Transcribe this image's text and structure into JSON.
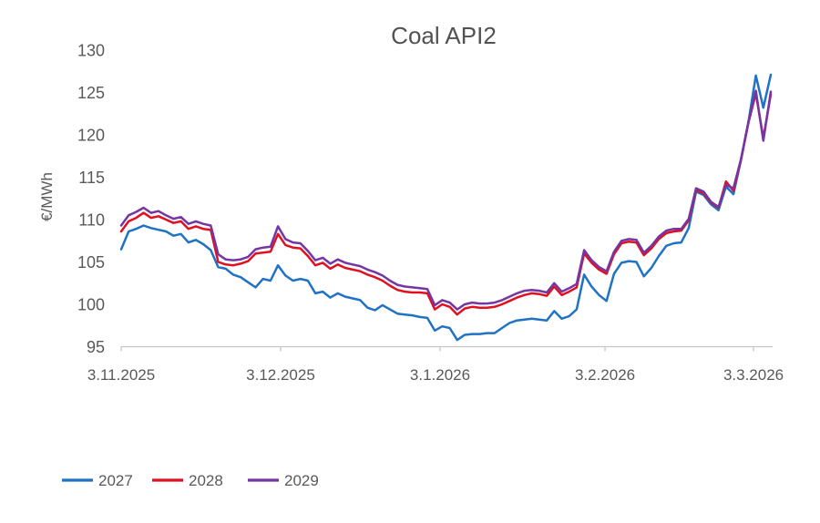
{
  "chart_data": {
    "type": "line",
    "title": "Coal API2",
    "ylabel": "€/MWh",
    "xlabel": "",
    "ylim": [
      95,
      130
    ],
    "y_ticks": [
      130,
      125,
      120,
      115,
      110,
      105,
      100,
      95
    ],
    "x_ticks": [
      {
        "label": "3.11.2025",
        "pos": 0.0
      },
      {
        "label": "3.12.2025",
        "pos": 0.2454
      },
      {
        "label": "3.1.2026",
        "pos": 0.4909
      },
      {
        "label": "3.2.2026",
        "pos": 0.7448
      },
      {
        "label": "3.3.2026",
        "pos": 0.9734
      }
    ],
    "grid": false,
    "legend_position": "bottom-left",
    "series": [
      {
        "name": "2027",
        "color": "#1F72C4",
        "values": [
          106.5,
          108.6,
          108.9,
          109.3,
          109.0,
          108.8,
          108.6,
          108.1,
          108.3,
          107.3,
          107.6,
          107.1,
          106.4,
          104.4,
          104.2,
          103.5,
          103.2,
          102.6,
          102.0,
          103.0,
          102.8,
          104.6,
          103.4,
          102.8,
          103.0,
          102.8,
          101.3,
          101.5,
          100.8,
          101.3,
          100.9,
          100.7,
          100.5,
          99.6,
          99.3,
          99.9,
          99.4,
          98.9,
          98.8,
          98.7,
          98.5,
          98.4,
          96.9,
          97.4,
          97.2,
          95.8,
          96.4,
          96.5,
          96.5,
          96.6,
          96.6,
          97.2,
          97.8,
          98.1,
          98.2,
          98.3,
          98.2,
          98.1,
          99.2,
          98.3,
          98.6,
          99.4,
          103.5,
          102.1,
          101.1,
          100.4,
          103.6,
          104.9,
          105.1,
          105.0,
          103.3,
          104.3,
          105.7,
          106.9,
          107.2,
          107.3,
          109.0,
          113.3,
          112.9,
          111.8,
          111.1,
          113.9,
          113.0,
          117.0,
          121.5,
          127.0,
          123.2,
          127.1
        ]
      },
      {
        "name": "2028",
        "color": "#E01020",
        "values": [
          108.6,
          109.8,
          110.2,
          110.8,
          110.2,
          110.4,
          110.0,
          109.6,
          109.8,
          108.9,
          109.2,
          108.9,
          108.8,
          105.0,
          104.7,
          104.6,
          104.8,
          105.1,
          106.0,
          106.1,
          106.2,
          108.3,
          107.0,
          106.7,
          106.6,
          105.7,
          104.6,
          104.9,
          104.2,
          104.7,
          104.3,
          104.1,
          103.9,
          103.5,
          103.2,
          102.8,
          102.2,
          101.7,
          101.5,
          101.4,
          101.4,
          101.3,
          99.4,
          100.0,
          99.7,
          98.8,
          99.5,
          99.7,
          99.6,
          99.6,
          99.7,
          100.0,
          100.4,
          100.8,
          101.1,
          101.3,
          101.2,
          101.0,
          102.1,
          101.1,
          101.5,
          102.0,
          106.0,
          104.9,
          104.1,
          103.6,
          105.9,
          107.2,
          107.4,
          107.3,
          105.8,
          106.6,
          107.7,
          108.4,
          108.6,
          108.7,
          109.9,
          113.5,
          113.1,
          112.0,
          111.4,
          114.5,
          113.4,
          117.0,
          121.4,
          124.9,
          119.6,
          124.8
        ]
      },
      {
        "name": "2029",
        "color": "#7535A5",
        "values": [
          109.3,
          110.5,
          110.9,
          111.4,
          110.8,
          111.0,
          110.5,
          110.1,
          110.3,
          109.5,
          109.8,
          109.5,
          109.3,
          105.9,
          105.3,
          105.2,
          105.3,
          105.6,
          106.5,
          106.7,
          106.8,
          109.2,
          107.7,
          107.3,
          107.2,
          106.3,
          105.2,
          105.5,
          104.8,
          105.3,
          104.9,
          104.7,
          104.5,
          104.1,
          103.8,
          103.4,
          102.8,
          102.3,
          102.1,
          102.0,
          101.9,
          101.8,
          99.9,
          100.5,
          100.2,
          99.4,
          100.0,
          100.2,
          100.1,
          100.1,
          100.2,
          100.5,
          100.9,
          101.3,
          101.6,
          101.7,
          101.6,
          101.4,
          102.5,
          101.5,
          101.9,
          102.4,
          106.4,
          105.2,
          104.4,
          103.9,
          106.2,
          107.5,
          107.7,
          107.6,
          106.1,
          106.9,
          108.0,
          108.7,
          108.9,
          108.9,
          110.1,
          113.7,
          113.3,
          112.1,
          111.5,
          114.1,
          113.7,
          117.1,
          121.5,
          125.2,
          119.3,
          125.1
        ]
      }
    ]
  },
  "colors": {
    "text": "#595959",
    "title_text": "#525252",
    "axis_line": "#C6C6C6",
    "background": "#FFFFFF"
  }
}
